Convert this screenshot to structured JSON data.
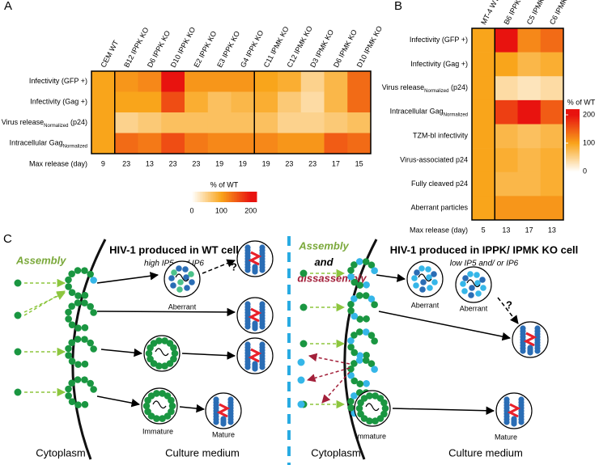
{
  "chart_data": [
    {
      "type": "heatmap",
      "panel": "A",
      "categories": [
        "CEM WT",
        "B12 IPPK KO",
        "D6 IPPK KO",
        "D10 IPPK KO",
        "E2 IPPK KO",
        "E3 IPPK KO",
        "G4 IPPK KO",
        "C11 IPMK KO",
        "C12 IPMK KO",
        "D3 IPMK KO",
        "D6 IPMK KO",
        "D10 IPMK KO"
      ],
      "rows": [
        "Infectivity (GFP +)",
        "Infectivity (Gag +)",
        {
          "text": "Virus release",
          "sub": "Normalized",
          "after": " (p24)"
        },
        {
          "text": "Intracellular Gag",
          "sub": "Normalized"
        }
      ],
      "values": [
        [
          100,
          110,
          120,
          210,
          110,
          110,
          110,
          100,
          90,
          50,
          80,
          140
        ],
        [
          100,
          100,
          100,
          160,
          90,
          70,
          80,
          90,
          60,
          40,
          80,
          140
        ],
        [
          100,
          50,
          60,
          70,
          70,
          70,
          70,
          70,
          50,
          50,
          60,
          70
        ],
        [
          100,
          140,
          130,
          160,
          130,
          120,
          120,
          120,
          110,
          110,
          150,
          140
        ]
      ],
      "extra_row": {
        "label": "Max release (day)",
        "values": [
          9,
          23,
          13,
          23,
          23,
          19,
          19,
          19,
          23,
          23,
          17,
          15
        ]
      },
      "groups": [
        1,
        7
      ],
      "colorbar": {
        "title": "% of WT",
        "clim": [
          0,
          220
        ],
        "ticks": [
          0,
          100,
          200
        ],
        "orientation": "horizontal",
        "stops": [
          {
            "value": 0,
            "color": "#ffffff"
          },
          {
            "value": 100,
            "color": "#f9a51b"
          },
          {
            "value": 200,
            "color": "#e8130f"
          }
        ]
      }
    },
    {
      "type": "heatmap",
      "panel": "B",
      "categories": [
        "MT-4 WT",
        "B6 IPPK KO",
        "C5 IPMK KO",
        "C6 IPMK KO"
      ],
      "rows": [
        "Infectivity (GFP +)",
        "Infectivity (Gag +)",
        {
          "text": "Virus release",
          "sub": "Normalized",
          "after": " (p24)"
        },
        {
          "text": "Intracellular Gag",
          "sub": "Normalized"
        },
        "TZM-bl infectivity",
        "Virus-associated p24",
        "Fully cleaved p24",
        "Aberrant particles"
      ],
      "values": [
        [
          100,
          210,
          120,
          140
        ],
        [
          100,
          100,
          80,
          90
        ],
        [
          100,
          40,
          30,
          40
        ],
        [
          100,
          170,
          200,
          150
        ],
        [
          100,
          80,
          70,
          80
        ],
        [
          100,
          90,
          80,
          90
        ],
        [
          100,
          80,
          80,
          90
        ],
        [
          100,
          110,
          110,
          110
        ]
      ],
      "extra_row": {
        "label": "Max release (day)",
        "values": [
          5,
          13,
          17,
          13
        ]
      },
      "groups": [
        1
      ],
      "colorbar": {
        "title": "% of WT",
        "clim": [
          0,
          220
        ],
        "ticks": [
          0,
          100,
          200
        ],
        "orientation": "vertical",
        "stops": [
          {
            "value": 0,
            "color": "#ffffff"
          },
          {
            "value": 100,
            "color": "#f9a51b"
          },
          {
            "value": 200,
            "color": "#e8130f"
          }
        ]
      }
    }
  ],
  "diagram": {
    "panel": "C",
    "left": {
      "process": "Assembly",
      "title": "HIV-1 produced in WT cell",
      "subtitle": "high IP5 and IP6",
      "question": "?",
      "aberrant": "Aberrant",
      "immature": "Immature",
      "mature": "Mature",
      "cytoplasm": "Cytoplasm",
      "medium": "Culture medium"
    },
    "right": {
      "process": "Assembly",
      "and": "and",
      "process2": "dissassembly",
      "title": "HIV-1 produced in IPPK/ IPMK KO cell",
      "subtitle": "low IP5 and/ or IP6",
      "question": "?",
      "aberrant": "Aberrant",
      "aberrant2": "Aberrant",
      "immature": "Immature",
      "mature": "Mature",
      "cytoplasm": "Cytoplasm",
      "medium": "Culture medium"
    }
  }
}
